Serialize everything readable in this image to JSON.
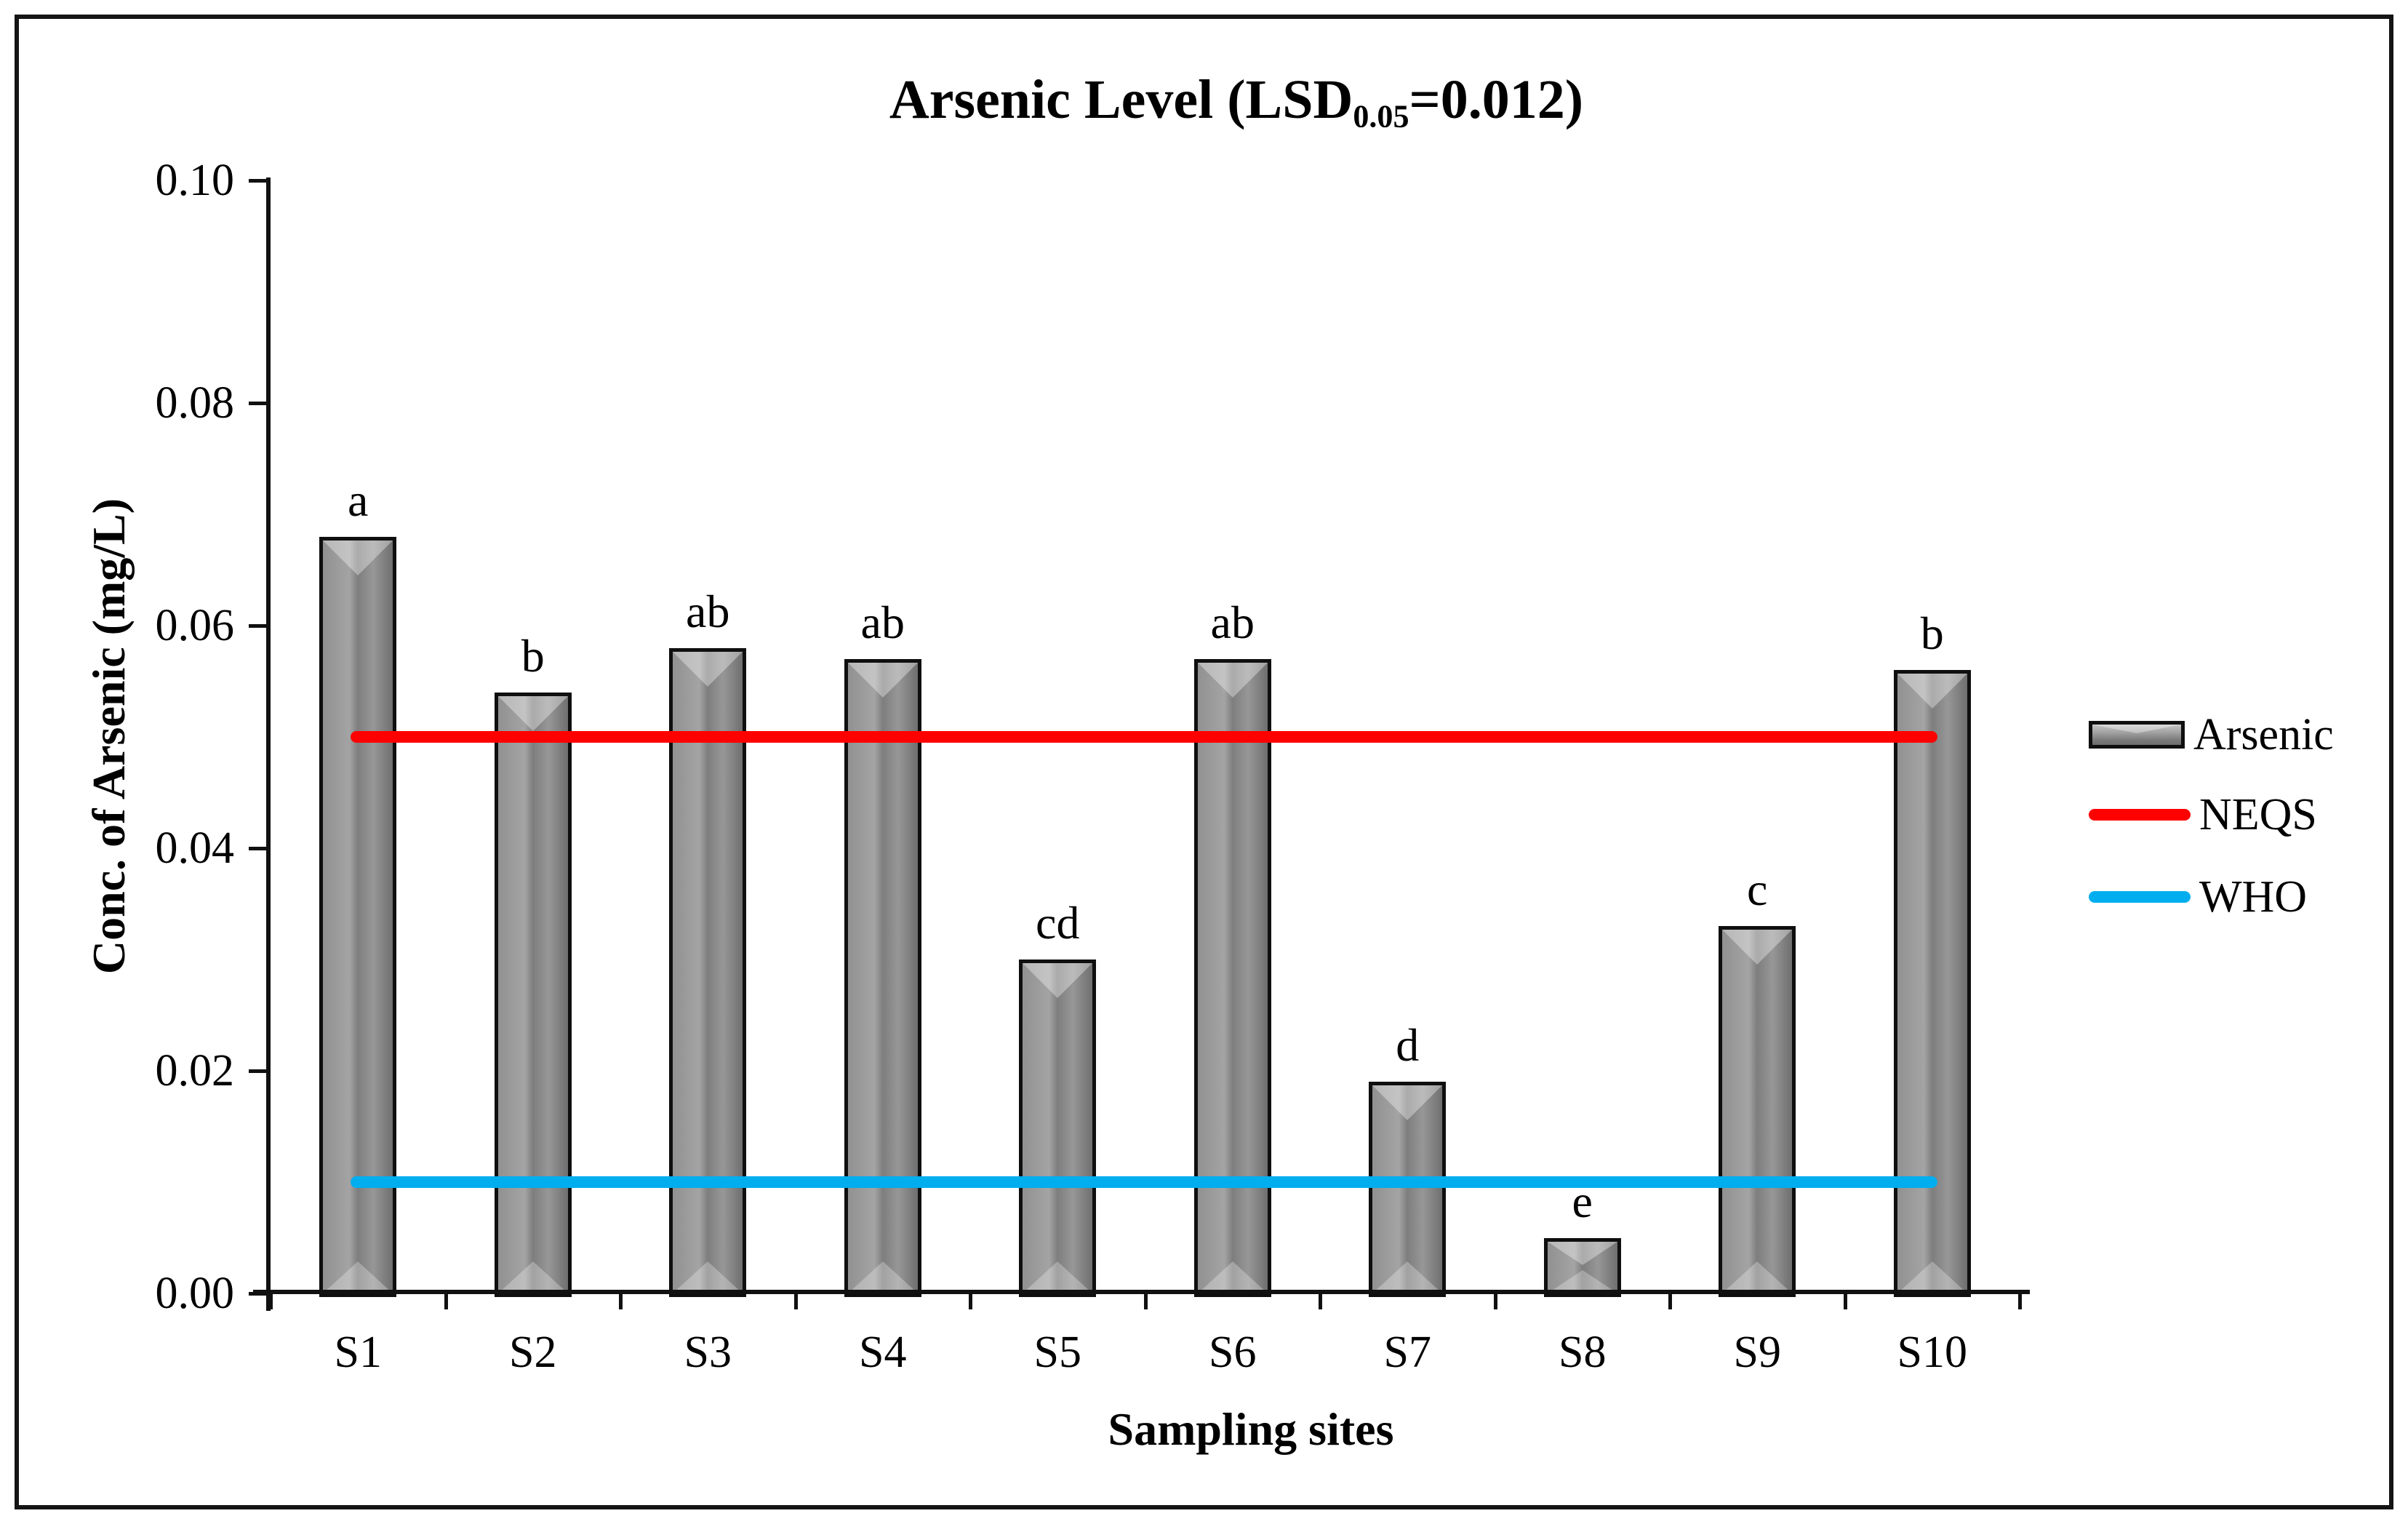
{
  "figure": {
    "title": {
      "prefix": "Arsenic Level (LSD",
      "subscript": "0.05",
      "suffix": "=0.012)"
    },
    "y_axis_title": "Conc. of Arsenic (mg/L)",
    "x_axis_title": "Sampling sites"
  },
  "legend": {
    "position": "right",
    "items": [
      {
        "label": "Arsenic",
        "swatch": "bar",
        "color": "#8c8c8c"
      },
      {
        "label": "NEQS",
        "swatch": "line",
        "color": "#ff0000"
      },
      {
        "label": "WHO",
        "swatch": "line",
        "color": "#00aeef"
      }
    ]
  },
  "chart_data": {
    "type": "bar",
    "title": "Arsenic Level (LSD0.05=0.012)",
    "xlabel": "Sampling sites",
    "ylabel": "Conc. of Arsenic (mg/L)",
    "categories": [
      "S1",
      "S2",
      "S3",
      "S4",
      "S5",
      "S6",
      "S7",
      "S8",
      "S9",
      "S10"
    ],
    "series": [
      {
        "name": "Arsenic",
        "values": [
          0.068,
          0.054,
          0.058,
          0.057,
          0.03,
          0.057,
          0.019,
          0.005,
          0.033,
          0.056
        ]
      }
    ],
    "bar_significance_labels": [
      "a",
      "b",
      "ab",
      "ab",
      "cd",
      "ab",
      "d",
      "e",
      "c",
      "b"
    ],
    "reference_lines": [
      {
        "name": "NEQS",
        "value": 0.05,
        "color": "#ff0000"
      },
      {
        "name": "WHO",
        "value": 0.01,
        "color": "#00aeef"
      }
    ],
    "ylim": [
      0,
      0.1
    ],
    "ytick_step": 0.02,
    "ytick_labels": [
      "0.00",
      "0.02",
      "0.04",
      "0.06",
      "0.08",
      "0.10"
    ],
    "grid": false,
    "bar_color": "#8c8c8c",
    "legend_position": "right"
  }
}
